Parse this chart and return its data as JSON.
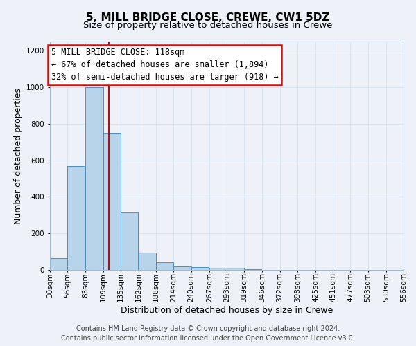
{
  "title_line1": "5, MILL BRIDGE CLOSE, CREWE, CW1 5DZ",
  "title_line2": "Size of property relative to detached houses in Crewe",
  "xlabel": "Distribution of detached houses by size in Crewe",
  "ylabel": "Number of detached properties",
  "bin_edges": [
    30,
    56,
    83,
    109,
    135,
    162,
    188,
    214,
    240,
    267,
    293,
    319,
    346,
    372,
    398,
    425,
    451,
    477,
    503,
    530,
    556
  ],
  "bar_heights": [
    65,
    570,
    1000,
    750,
    315,
    95,
    40,
    20,
    15,
    10,
    10,
    5,
    0,
    0,
    0,
    0,
    0,
    0,
    0,
    0
  ],
  "bar_color": "#b8d4ea",
  "bar_edge_color": "#4a8fc0",
  "property_size": 118,
  "red_line_color": "#aa1111",
  "annotation_text_line1": "5 MILL BRIDGE CLOSE: 118sqm",
  "annotation_text_line2": "← 67% of detached houses are smaller (1,894)",
  "annotation_text_line3": "32% of semi-detached houses are larger (918) →",
  "annotation_box_edgecolor": "#cc1111",
  "ylim": [
    0,
    1250
  ],
  "yticks": [
    0,
    200,
    400,
    600,
    800,
    1000,
    1200
  ],
  "footer_line1": "Contains HM Land Registry data © Crown copyright and database right 2024.",
  "footer_line2": "Contains public sector information licensed under the Open Government Licence v3.0.",
  "background_color": "#eef2f8",
  "grid_color": "#d8e4f0",
  "title_fontsize": 11,
  "subtitle_fontsize": 9.5,
  "axis_label_fontsize": 9,
  "tick_fontsize": 7.5,
  "footer_fontsize": 7,
  "ann_fontsize": 8.5
}
